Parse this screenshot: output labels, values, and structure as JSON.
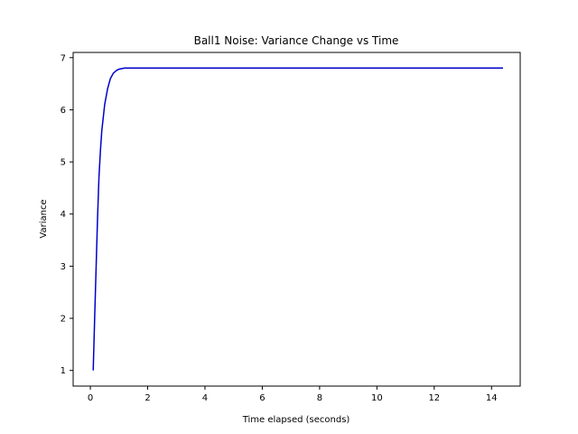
{
  "chart_data": {
    "type": "line",
    "title": "Ball1 Noise: Variance Change vs Time",
    "xlabel": "Time elapsed (seconds)",
    "ylabel": "Variance",
    "xlim": [
      -0.6,
      15.0
    ],
    "ylim": [
      0.7,
      7.1
    ],
    "xticks": [
      0,
      2,
      4,
      6,
      8,
      10,
      12,
      14
    ],
    "yticks": [
      1,
      2,
      3,
      4,
      5,
      6,
      7
    ],
    "grid": false,
    "legend": "none",
    "series": [
      {
        "color": "#0000cc",
        "x": [
          0.1,
          0.15,
          0.2,
          0.25,
          0.3,
          0.35,
          0.4,
          0.5,
          0.6,
          0.7,
          0.8,
          0.9,
          1.0,
          1.1,
          1.2,
          1.4,
          1.6,
          2.0,
          3.0,
          5.0,
          8.0,
          11.0,
          14.4
        ],
        "y": [
          1.0,
          2.0,
          2.95,
          3.9,
          4.7,
          5.2,
          5.6,
          6.1,
          6.4,
          6.6,
          6.7,
          6.75,
          6.78,
          6.79,
          6.8,
          6.8,
          6.8,
          6.8,
          6.8,
          6.8,
          6.8,
          6.8,
          6.8
        ]
      }
    ]
  }
}
